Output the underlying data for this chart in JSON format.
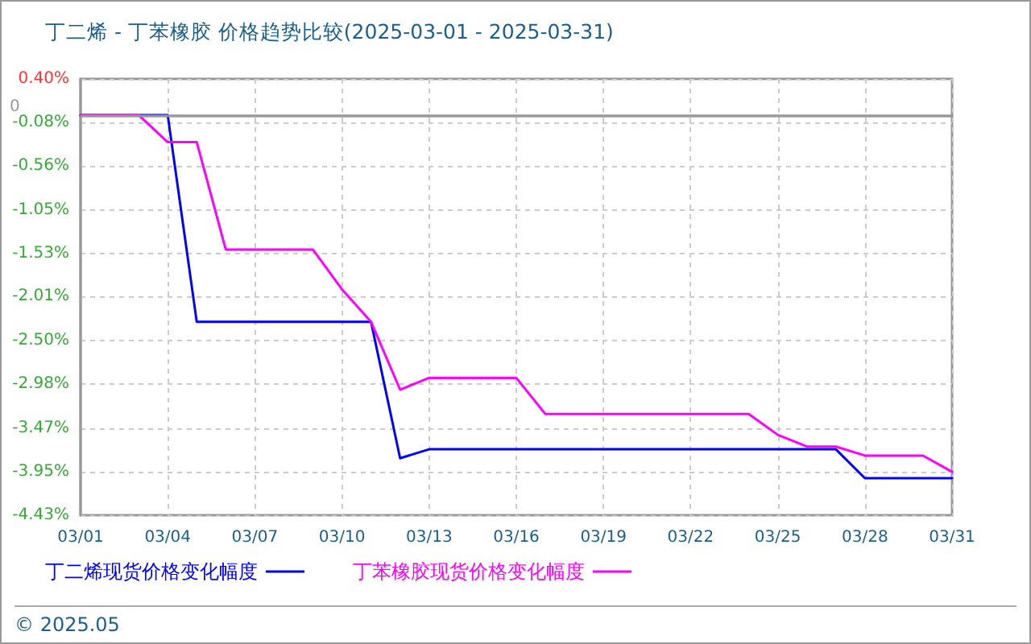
{
  "chart_data": {
    "type": "line",
    "title": "丁二烯 - 丁苯橡胶 价格趋势比较(2025-03-01 - 2025-03-31)",
    "x": [
      "2025-03-01",
      "2025-03-02",
      "2025-03-03",
      "2025-03-04",
      "2025-03-05",
      "2025-03-06",
      "2025-03-07",
      "2025-03-08",
      "2025-03-09",
      "2025-03-10",
      "2025-03-11",
      "2025-03-12",
      "2025-03-13",
      "2025-03-14",
      "2025-03-15",
      "2025-03-16",
      "2025-03-17",
      "2025-03-18",
      "2025-03-19",
      "2025-03-20",
      "2025-03-21",
      "2025-03-22",
      "2025-03-23",
      "2025-03-24",
      "2025-03-25",
      "2025-03-26",
      "2025-03-27",
      "2025-03-28",
      "2025-03-29",
      "2025-03-30",
      "2025-03-31"
    ],
    "series": [
      {
        "name": "丁二烯现货价格变化幅度",
        "color": "#0000ff",
        "values": [
          0,
          0,
          0,
          0,
          -2.29,
          -2.29,
          -2.29,
          -2.29,
          -2.29,
          -2.29,
          -2.29,
          -3.8,
          -3.7,
          -3.7,
          -3.7,
          -3.7,
          -3.7,
          -3.7,
          -3.7,
          -3.7,
          -3.7,
          -3.7,
          -3.7,
          -3.7,
          -3.7,
          -3.7,
          -3.7,
          -4.02,
          -4.02,
          -4.02,
          -4.02
        ]
      },
      {
        "name": "丁苯橡胶现货价格变化幅度",
        "color": "#ff00ff",
        "values": [
          0,
          0,
          0,
          -0.3,
          -0.3,
          -1.49,
          -1.49,
          -1.49,
          -1.49,
          -1.93,
          -2.29,
          -3.04,
          -2.91,
          -2.91,
          -2.91,
          -2.91,
          -3.31,
          -3.31,
          -3.31,
          -3.31,
          -3.31,
          -3.31,
          -3.31,
          -3.31,
          -3.54,
          -3.67,
          -3.67,
          -3.77,
          -3.77,
          -3.77,
          -3.95
        ]
      }
    ],
    "xlim": [
      "2025-03-01",
      "2025-03-31"
    ],
    "xticks": [
      {
        "value": "2025-03-01",
        "label": "03/01"
      },
      {
        "value": "2025-03-04",
        "label": "03/04"
      },
      {
        "value": "2025-03-07",
        "label": "03/07"
      },
      {
        "value": "2025-03-10",
        "label": "03/10"
      },
      {
        "value": "2025-03-13",
        "label": "03/13"
      },
      {
        "value": "2025-03-16",
        "label": "03/16"
      },
      {
        "value": "2025-03-19",
        "label": "03/19"
      },
      {
        "value": "2025-03-22",
        "label": "03/22"
      },
      {
        "value": "2025-03-25",
        "label": "03/25"
      },
      {
        "value": "2025-03-28",
        "label": "03/28"
      },
      {
        "value": "2025-03-31",
        "label": "03/31"
      }
    ],
    "ylim": [
      -4.43,
      0.4
    ],
    "yticks": [
      {
        "value": 0.4,
        "label": "0.40%"
      },
      {
        "value": -0.08,
        "label": "-0.08%"
      },
      {
        "value": -0.56,
        "label": "-0.56%"
      },
      {
        "value": -1.05,
        "label": "-1.05%"
      },
      {
        "value": -1.53,
        "label": "-1.53%"
      },
      {
        "value": -2.01,
        "label": "-2.01%"
      },
      {
        "value": -2.5,
        "label": "-2.50%"
      },
      {
        "value": -2.98,
        "label": "-2.98%"
      },
      {
        "value": -3.47,
        "label": "-3.47%"
      },
      {
        "value": -3.95,
        "label": "-3.95%"
      },
      {
        "value": -4.43,
        "label": "-4.43%"
      }
    ],
    "grid": true,
    "legend": "bottom left",
    "marker": "none",
    "ref_lines": [
      {
        "axis": "y",
        "value": 0,
        "label": "0",
        "color": "#999999"
      }
    ],
    "annotations": [
      "© 2025.05"
    ]
  }
}
